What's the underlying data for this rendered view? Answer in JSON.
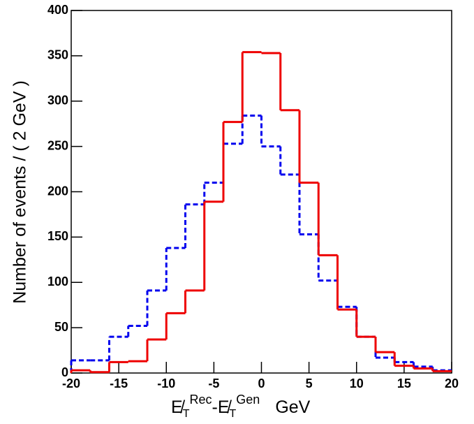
{
  "chart_data": {
    "type": "histogram",
    "bins": [
      -20,
      -18,
      -16,
      -14,
      -12,
      -10,
      -8,
      -6,
      -4,
      -2,
      0,
      2,
      4,
      6,
      8,
      10,
      12,
      14,
      16,
      18,
      20
    ],
    "series": [
      {
        "color": "#0000ee",
        "dashed": true,
        "values": [
          14,
          14,
          40,
          52,
          91,
          138,
          186,
          210,
          253,
          284,
          250,
          219,
          153,
          102,
          73,
          40,
          17,
          12,
          7,
          3
        ]
      },
      {
        "color": "#ee0000",
        "dashed": false,
        "values": [
          3,
          1,
          12,
          13,
          37,
          66,
          91,
          189,
          277,
          354,
          353,
          290,
          210,
          130,
          70,
          40,
          23,
          8,
          5,
          2
        ]
      }
    ],
    "xlim": [
      -20,
      20
    ],
    "xticks": [
      -20,
      -15,
      -10,
      -5,
      0,
      5,
      10,
      15,
      20
    ],
    "ylim": [
      0,
      400
    ],
    "yticks": [
      0,
      50,
      100,
      150,
      200,
      250,
      300,
      350,
      400
    ],
    "ylabel": "Number of events / ( 2 GeV )",
    "xlabel": {
      "met": "E̸",
      "sub": "T",
      "rec": "Rec",
      "minus": "-",
      "gen": "Gen",
      "unit": "GeV"
    }
  }
}
